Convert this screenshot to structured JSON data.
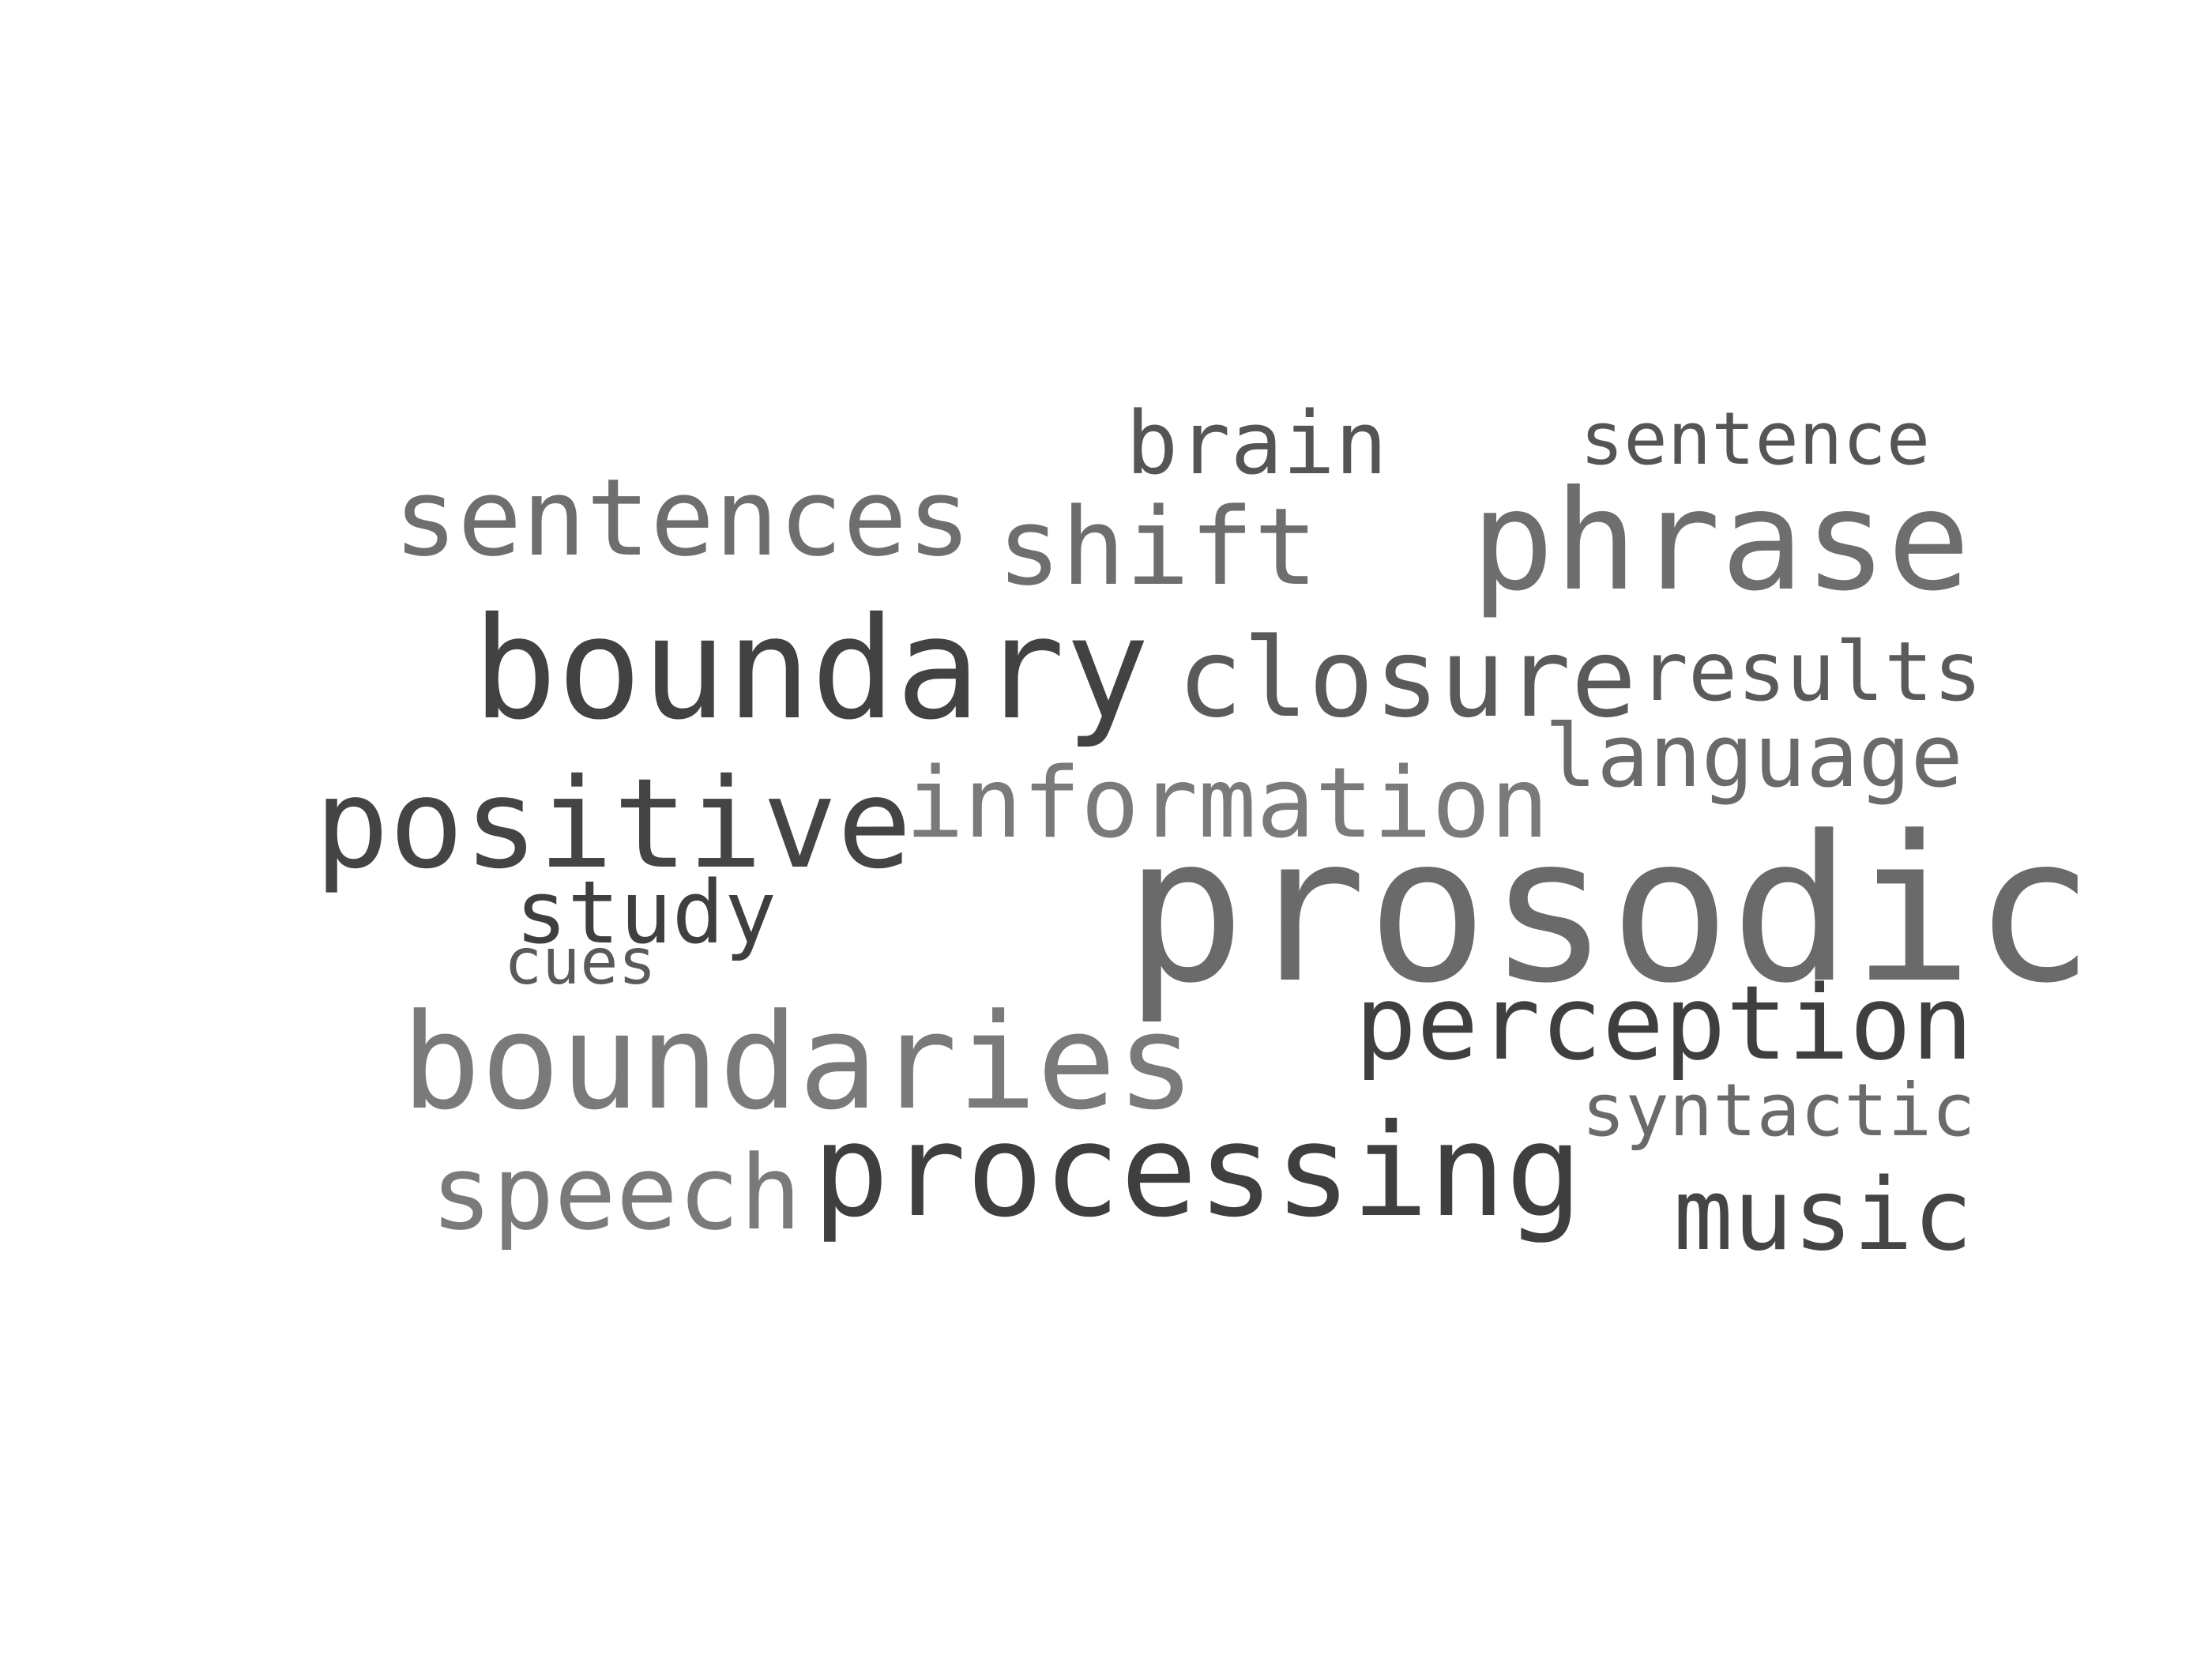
{
  "words": [
    {
      "text": "brain",
      "color": "#555555"
    },
    {
      "text": "sentence",
      "color": "#555555"
    },
    {
      "text": "sentences",
      "color": "#6e6e6e"
    },
    {
      "text": "shift",
      "color": "#6e6e6e"
    },
    {
      "text": "phrase",
      "color": "#6e6e6e"
    },
    {
      "text": "boundary",
      "color": "#424242"
    },
    {
      "text": "closure",
      "color": "#5a5a5a"
    },
    {
      "text": "results",
      "color": "#5a5a5a"
    },
    {
      "text": "language",
      "color": "#6a6a6a"
    },
    {
      "text": "positive",
      "color": "#444444"
    },
    {
      "text": "information",
      "color": "#7a7a7a"
    },
    {
      "text": "prosodic",
      "color": "#6a6a6a"
    },
    {
      "text": "study",
      "color": "#3f3f3f"
    },
    {
      "text": "cues",
      "color": "#5a5a5a"
    },
    {
      "text": "boundaries",
      "color": "#7a7a7a"
    },
    {
      "text": "perception",
      "color": "#3f3f3f"
    },
    {
      "text": "syntactic",
      "color": "#6a6a6a"
    },
    {
      "text": "speech",
      "color": "#7a7a7a"
    },
    {
      "text": "processing",
      "color": "#3f3f3f"
    },
    {
      "text": "music",
      "color": "#454545"
    }
  ]
}
